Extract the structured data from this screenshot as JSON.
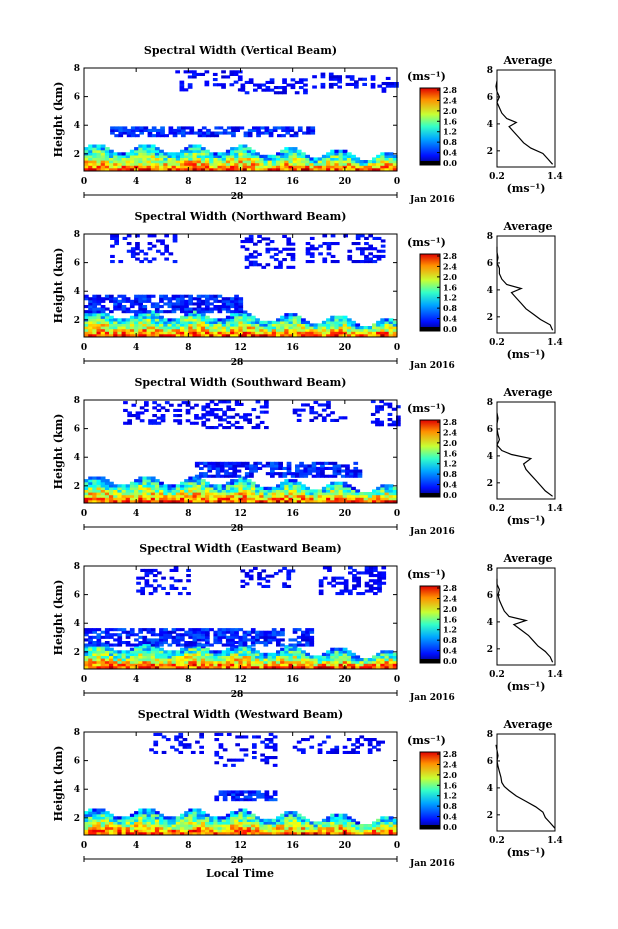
{
  "figure": {
    "date_label": "Jan 2016",
    "day_label": "28",
    "xlabel": "Local Time",
    "ylabel": "Height (km)",
    "units": "(ms⁻¹)",
    "avg_title": "Average",
    "avg_xlabel": "(ms⁻¹)"
  },
  "chart_data": [
    {
      "type": "heatmap",
      "title": "Spectral Width (Vertical Beam)",
      "xlabel": "",
      "ylabel": "Height (km)",
      "x_ticks": [
        "0",
        "4",
        "8",
        "12",
        "16",
        "20",
        "0"
      ],
      "xlim": [
        0,
        24
      ],
      "y_ticks": [
        "2",
        "4",
        "6",
        "8"
      ],
      "ylim": [
        0.8,
        8
      ],
      "colorbar": {
        "label": "(ms⁻¹)",
        "ticks": [
          "0.0",
          "0.4",
          "0.8",
          "1.2",
          "1.6",
          "2.0",
          "2.4",
          "2.8"
        ],
        "range": [
          0,
          2.8
        ]
      },
      "upper_cloud": {
        "hmin": 3.2,
        "hmax": 3.8,
        "t_start": 2.0,
        "t_end": 17.5
      },
      "upper_patches": [
        [
          6.4,
          7.8,
          7,
          12,
          0.35
        ],
        [
          6.2,
          7.2,
          12,
          17,
          0.4
        ],
        [
          6.6,
          7.6,
          17.5,
          22,
          0.3
        ],
        [
          6.3,
          7.2,
          22.5,
          24,
          0.3
        ]
      ],
      "average_profile": {
        "xlim": [
          0.2,
          1.4
        ],
        "x_ticks": [
          "0.2",
          "1.4"
        ],
        "y_ticks": [
          "2",
          "4",
          "6",
          "8"
        ],
        "height_km": [
          1.0,
          1.4,
          1.8,
          2.2,
          2.6,
          3.0,
          3.4,
          3.8,
          4.1,
          4.4,
          4.8,
          5.2,
          5.6,
          6.0,
          6.4,
          6.8,
          7.2
        ],
        "value": [
          1.35,
          1.25,
          1.15,
          0.9,
          0.75,
          0.65,
          0.55,
          0.45,
          0.6,
          0.4,
          0.3,
          0.25,
          0.2,
          0.25,
          0.2,
          0.18,
          0.2
        ]
      }
    },
    {
      "type": "heatmap",
      "title": "Spectral Width (Northward Beam)",
      "xlabel": "",
      "ylabel": "Height (km)",
      "x_ticks": [
        "0",
        "4",
        "8",
        "12",
        "16",
        "20",
        "0"
      ],
      "xlim": [
        0,
        24
      ],
      "y_ticks": [
        "2",
        "4",
        "6",
        "8"
      ],
      "ylim": [
        0.8,
        8
      ],
      "colorbar": {
        "label": "(ms⁻¹)",
        "ticks": [
          "0.0",
          "0.4",
          "0.8",
          "1.2",
          "1.6",
          "2.0",
          "2.4",
          "2.8"
        ],
        "range": [
          0,
          2.8
        ]
      },
      "upper_cloud": {
        "hmin": 2.5,
        "hmax": 3.6,
        "t_start": 0.0,
        "t_end": 12.0
      },
      "upper_patches": [
        [
          6.0,
          7.8,
          2,
          7,
          0.3
        ],
        [
          5.6,
          7.8,
          12,
          16,
          0.35
        ],
        [
          6.0,
          7.8,
          17,
          23,
          0.3
        ]
      ],
      "average_profile": {
        "xlim": [
          0.2,
          1.4
        ],
        "x_ticks": [
          "0.2",
          "1.4"
        ],
        "y_ticks": [
          "2",
          "4",
          "6",
          "8"
        ],
        "height_km": [
          1.0,
          1.4,
          1.8,
          2.2,
          2.6,
          3.0,
          3.4,
          3.8,
          4.1,
          4.4,
          4.8,
          5.2,
          5.6,
          6.0,
          6.4,
          6.8,
          7.2
        ],
        "value": [
          1.35,
          1.3,
          1.1,
          0.95,
          0.8,
          0.7,
          0.6,
          0.5,
          0.7,
          0.4,
          0.3,
          0.25,
          0.25,
          0.2,
          0.22,
          0.2,
          0.2
        ]
      }
    },
    {
      "type": "heatmap",
      "title": "Spectral Width (Southward Beam)",
      "xlabel": "",
      "ylabel": "Height (km)",
      "x_ticks": [
        "0",
        "4",
        "8",
        "12",
        "16",
        "20",
        "0"
      ],
      "xlim": [
        0,
        24
      ],
      "y_ticks": [
        "2",
        "4",
        "6",
        "8"
      ],
      "ylim": [
        0.8,
        8
      ],
      "colorbar": {
        "label": "(ms⁻¹)",
        "ticks": [
          "0.0",
          "0.4",
          "0.8",
          "1.2",
          "1.6",
          "2.0",
          "2.4",
          "2.8"
        ],
        "range": [
          0,
          2.8
        ]
      },
      "upper_cloud": {
        "hmin": 2.6,
        "hmax": 3.6,
        "t_start": 8.5,
        "t_end": 21.0
      },
      "upper_patches": [
        [
          6.3,
          7.9,
          3,
          9,
          0.3
        ],
        [
          6.0,
          7.9,
          9,
          14,
          0.4
        ],
        [
          6.5,
          7.9,
          16,
          20,
          0.3
        ],
        [
          6.2,
          7.9,
          22,
          24,
          0.35
        ]
      ],
      "average_profile": {
        "xlim": [
          0.2,
          1.4
        ],
        "x_ticks": [
          "0.2",
          "1.4"
        ],
        "y_ticks": [
          "2",
          "4",
          "6",
          "8"
        ],
        "height_km": [
          1.0,
          1.4,
          1.8,
          2.2,
          2.6,
          3.0,
          3.4,
          3.8,
          4.1,
          4.4,
          4.8,
          5.2,
          5.6,
          6.0,
          6.4,
          6.8,
          7.2
        ],
        "value": [
          1.35,
          1.2,
          1.1,
          1.0,
          0.9,
          0.8,
          0.75,
          0.9,
          0.5,
          0.3,
          0.2,
          0.25,
          0.22,
          0.2,
          0.2,
          0.22,
          0.2
        ]
      }
    },
    {
      "type": "heatmap",
      "title": "Spectral Width (Eastward Beam)",
      "xlabel": "",
      "ylabel": "Height (km)",
      "x_ticks": [
        "0",
        "4",
        "8",
        "12",
        "16",
        "20",
        "0"
      ],
      "xlim": [
        0,
        24
      ],
      "y_ticks": [
        "2",
        "4",
        "6",
        "8"
      ],
      "ylim": [
        0.8,
        8
      ],
      "colorbar": {
        "label": "(ms⁻¹)",
        "ticks": [
          "0.0",
          "0.4",
          "0.8",
          "1.2",
          "1.6",
          "2.0",
          "2.4",
          "2.8"
        ],
        "range": [
          0,
          2.8
        ]
      },
      "upper_cloud": {
        "hmin": 2.4,
        "hmax": 3.6,
        "t_start": 0.0,
        "t_end": 17.5
      },
      "upper_patches": [
        [
          6.0,
          7.8,
          4,
          8,
          0.3
        ],
        [
          6.5,
          7.8,
          12,
          16,
          0.3
        ],
        [
          6.0,
          7.8,
          18,
          23,
          0.35
        ]
      ],
      "average_profile": {
        "xlim": [
          0.2,
          1.4
        ],
        "x_ticks": [
          "0.2",
          "1.4"
        ],
        "y_ticks": [
          "2",
          "4",
          "6",
          "8"
        ],
        "height_km": [
          1.0,
          1.4,
          1.8,
          2.2,
          2.6,
          3.0,
          3.4,
          3.8,
          4.1,
          4.4,
          4.8,
          5.2,
          5.6,
          6.0,
          6.4,
          6.8,
          7.2
        ],
        "value": [
          1.35,
          1.3,
          1.2,
          1.05,
          0.95,
          0.85,
          0.7,
          0.55,
          0.8,
          0.45,
          0.35,
          0.3,
          0.25,
          0.22,
          0.25,
          0.2,
          0.2
        ]
      }
    },
    {
      "type": "heatmap",
      "title": "Spectral Width (Westward Beam)",
      "xlabel": "Local Time",
      "ylabel": "Height (km)",
      "x_ticks": [
        "0",
        "4",
        "8",
        "12",
        "16",
        "20",
        "0"
      ],
      "xlim": [
        0,
        24
      ],
      "y_ticks": [
        "2",
        "4",
        "6",
        "8"
      ],
      "ylim": [
        0.8,
        8
      ],
      "colorbar": {
        "label": "(ms⁻¹)",
        "ticks": [
          "0.0",
          "0.4",
          "0.8",
          "1.2",
          "1.6",
          "2.0",
          "2.4",
          "2.8"
        ],
        "range": [
          0,
          2.8
        ]
      },
      "upper_cloud": {
        "hmin": 3.2,
        "hmax": 3.8,
        "t_start": 10.0,
        "t_end": 14.5
      },
      "upper_patches": [
        [
          5.6,
          7.9,
          10,
          14.5,
          0.35
        ],
        [
          6.5,
          7.8,
          5,
          9,
          0.3
        ],
        [
          6.5,
          7.6,
          16,
          23,
          0.3
        ]
      ],
      "average_profile": {
        "xlim": [
          0.2,
          1.4
        ],
        "x_ticks": [
          "0.2",
          "1.4"
        ],
        "y_ticks": [
          "2",
          "4",
          "6",
          "8"
        ],
        "height_km": [
          1.0,
          1.4,
          1.8,
          2.2,
          2.6,
          3.0,
          3.4,
          3.8,
          4.1,
          4.4,
          4.8,
          5.2,
          5.6,
          6.0,
          6.4,
          6.8,
          7.2
        ],
        "value": [
          1.4,
          1.3,
          1.2,
          1.15,
          1.0,
          0.8,
          0.6,
          0.45,
          0.35,
          0.3,
          0.28,
          0.25,
          0.22,
          0.2,
          0.22,
          0.2,
          0.18
        ]
      }
    }
  ]
}
